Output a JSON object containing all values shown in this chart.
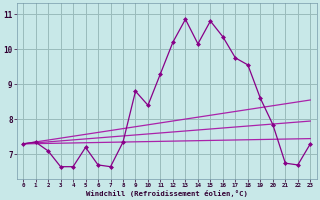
{
  "x": [
    0,
    1,
    2,
    3,
    4,
    5,
    6,
    7,
    8,
    9,
    10,
    11,
    12,
    13,
    14,
    15,
    16,
    17,
    18,
    19,
    20,
    21,
    22,
    23
  ],
  "main_y": [
    7.3,
    7.35,
    7.1,
    6.65,
    6.65,
    7.2,
    6.7,
    6.65,
    7.35,
    8.8,
    8.4,
    9.3,
    10.2,
    10.85,
    10.15,
    10.8,
    10.35,
    9.75,
    9.55,
    8.6,
    7.85,
    6.75,
    6.7,
    7.3
  ],
  "trend1_x": [
    0,
    23
  ],
  "trend1_y": [
    7.3,
    8.55
  ],
  "trend2_x": [
    0,
    23
  ],
  "trend2_y": [
    7.3,
    7.95
  ],
  "trend3_x": [
    0,
    23
  ],
  "trend3_y": [
    7.3,
    7.45
  ],
  "color_main": "#880088",
  "color_trend1": "#aa22aa",
  "color_trend2": "#aa22aa",
  "color_trend3": "#aa22aa",
  "bg_color": "#c8e8e8",
  "grid_color": "#99bbbb",
  "xlabel": "Windchill (Refroidissement éolien,°C)",
  "yticks": [
    7,
    8,
    9,
    10,
    11
  ],
  "xlim": [
    -0.5,
    23.5
  ],
  "ylim": [
    6.3,
    11.3
  ]
}
